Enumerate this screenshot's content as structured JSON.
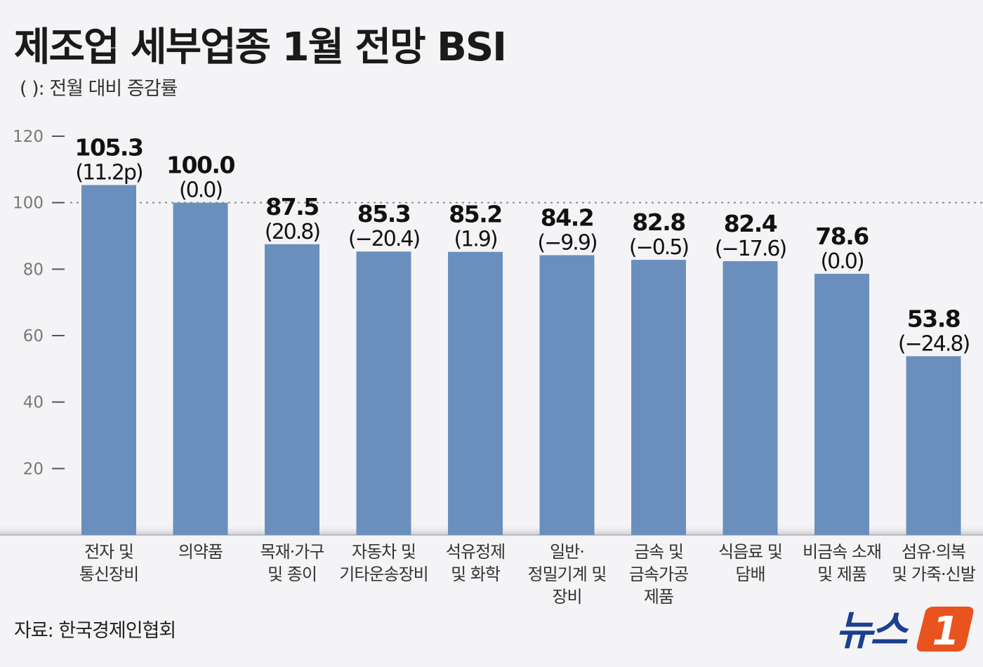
{
  "chart_data": {
    "type": "bar",
    "title": "제조업 세부업종 1월 전망 BSI",
    "subtitle": "(  ): 전월 대비 증감률",
    "categories": [
      [
        "전자 및",
        "통신장비"
      ],
      [
        "의약품"
      ],
      [
        "목재·가구",
        "및 종이"
      ],
      [
        "자동차 및",
        "기타운송장비"
      ],
      [
        "석유정제",
        "및 화학"
      ],
      [
        "일반·",
        "정밀기계 및",
        "장비"
      ],
      [
        "금속 및",
        "금속가공",
        "제품"
      ],
      [
        "식음료 및",
        "담배"
      ],
      [
        "비금속 소재",
        "및 제품"
      ],
      [
        "섬유·의복",
        "및 가죽·신발"
      ]
    ],
    "values": [
      105.3,
      100.0,
      87.5,
      85.3,
      85.2,
      84.2,
      82.8,
      82.4,
      78.6,
      53.8
    ],
    "value_labels": [
      "105.3",
      "100.0",
      "87.5",
      "85.3",
      "85.2",
      "84.2",
      "82.8",
      "82.4",
      "78.6",
      "53.8"
    ],
    "change_labels": [
      "(11.2p)",
      "(0.0)",
      "(20.8)",
      "(−20.4)",
      "(1.9)",
      "(−9.9)",
      "(−0.5)",
      "(−17.6)",
      "(0.0)",
      "(−24.8)"
    ],
    "yticks": [
      20,
      40,
      60,
      80,
      100,
      120
    ],
    "ylim": [
      0,
      120
    ],
    "reference_line": 100,
    "grid": false,
    "bar_color": "#6b8fbd"
  },
  "source": "자료: 한국경제인협회",
  "logo": {
    "text": "뉴스",
    "mark": "1",
    "accent_color": "#e9531e",
    "text_color": "#1b3f91"
  }
}
